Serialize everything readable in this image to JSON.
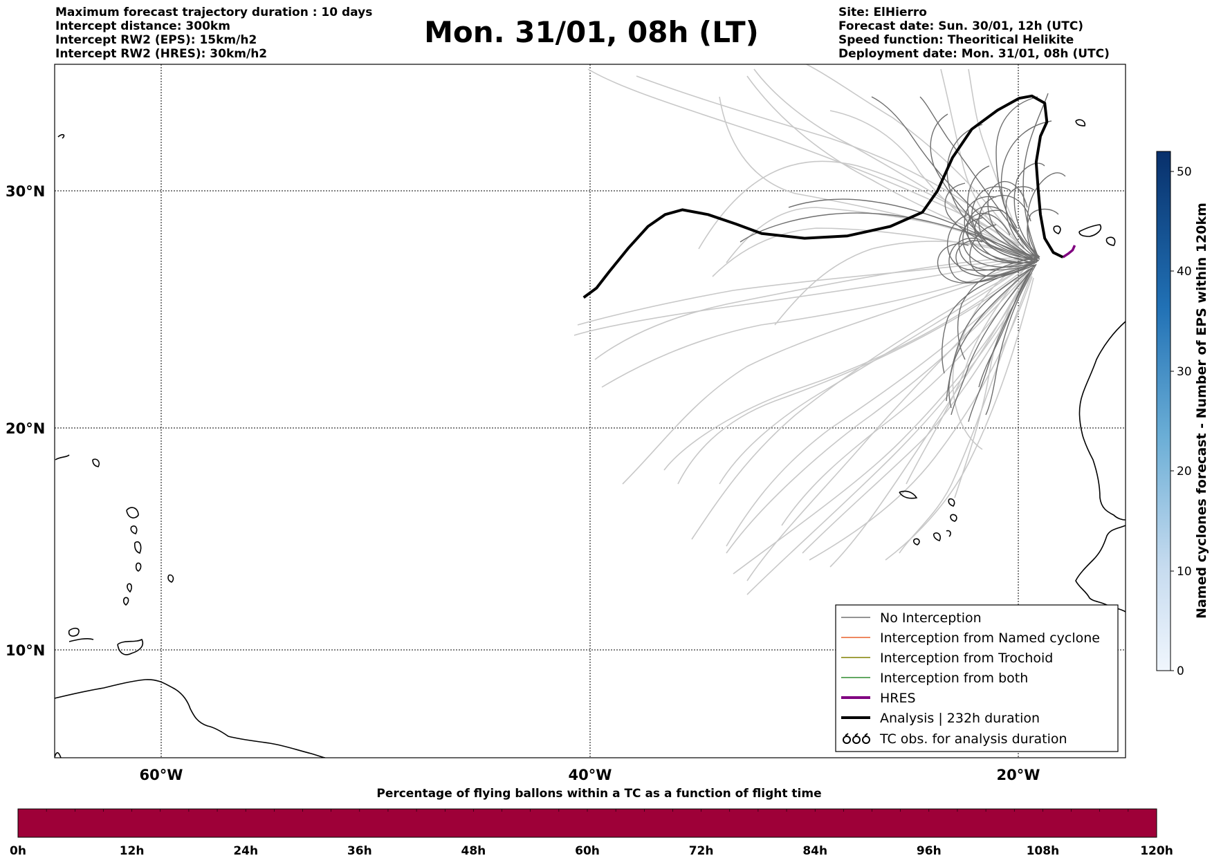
{
  "header": {
    "left_lines": [
      "Maximum forecast trajectory duration : 10 days",
      "Intercept distance: 300km",
      "Intercept RW2 (EPS):  15km/h2",
      "Intercept RW2 (HRES): 30km/h2"
    ],
    "title": "Mon. 31/01, 08h (LT)",
    "right_lines": [
      "Site: ElHierro",
      "Forecast date: Sun. 30/01, 12h (UTC)",
      "Speed function: Theoritical Helikite",
      "Deployment date: Mon. 31/01, 08h (UTC)"
    ]
  },
  "map": {
    "lat_labels": [
      "30°N",
      "20°N",
      "10°N"
    ],
    "lon_labels": [
      "60°W",
      "40°W",
      "20°W"
    ],
    "lon_range": [
      -65,
      -15
    ],
    "lat_range": [
      5.5,
      35
    ]
  },
  "legend": {
    "items": [
      {
        "label": "No Interception",
        "color": "#707070",
        "style": "thin"
      },
      {
        "label": "Interception from Named cyclone",
        "color": "#e8602c",
        "style": "thin"
      },
      {
        "label": "Interception from Trochoid",
        "color": "#808000",
        "style": "thin"
      },
      {
        "label": "Interception from both",
        "color": "#2e8b2e",
        "style": "thin"
      },
      {
        "label": "HRES",
        "color": "#800080",
        "style": "thick"
      },
      {
        "label": "Analysis | 232h duration",
        "color": "#000000",
        "style": "thick"
      },
      {
        "label": "TC obs. for analysis duration",
        "color": "#000000",
        "style": "symbol"
      }
    ]
  },
  "colorbar": {
    "title": "Named cyclones forecast - Number of EPS within 120km",
    "ticks": [
      "0",
      "10",
      "20",
      "30",
      "40",
      "50"
    ],
    "max": 52
  },
  "timeline": {
    "title": "Percentage of flying ballons within a TC as a function of flight time",
    "ticks": [
      "0h",
      "12h",
      "24h",
      "36h",
      "48h",
      "60h",
      "72h",
      "84h",
      "96h",
      "108h",
      "120h"
    ],
    "color": "#9e0038"
  },
  "tracks": {
    "analysis": [
      [
        -17.95,
        27.2
      ],
      [
        -18.4,
        27.4
      ],
      [
        -18.8,
        28.0
      ],
      [
        -19.0,
        29.0
      ],
      [
        -19.1,
        30.0
      ],
      [
        -19.2,
        31.2
      ],
      [
        -19.0,
        32.3
      ],
      [
        -18.7,
        32.9
      ],
      [
        -18.8,
        33.7
      ],
      [
        -19.4,
        34.0
      ],
      [
        -20.0,
        33.9
      ],
      [
        -21.0,
        33.4
      ],
      [
        -22.2,
        32.6
      ],
      [
        -23.1,
        31.4
      ],
      [
        -23.8,
        30.0
      ],
      [
        -24.5,
        29.1
      ],
      [
        -26.0,
        28.5
      ],
      [
        -28.0,
        28.1
      ],
      [
        -30.0,
        28.0
      ],
      [
        -32.0,
        28.2
      ],
      [
        -33.2,
        28.6
      ],
      [
        -34.5,
        29.0
      ],
      [
        -35.7,
        29.2
      ],
      [
        -36.5,
        29.0
      ],
      [
        -37.3,
        28.5
      ],
      [
        -38.2,
        27.6
      ],
      [
        -39.1,
        26.6
      ],
      [
        -39.7,
        25.9
      ],
      [
        -40.3,
        25.5
      ]
    ],
    "hres": [
      [
        -17.95,
        27.2
      ],
      [
        -17.7,
        27.35
      ],
      [
        -17.5,
        27.5
      ],
      [
        -17.4,
        27.7
      ]
    ]
  }
}
